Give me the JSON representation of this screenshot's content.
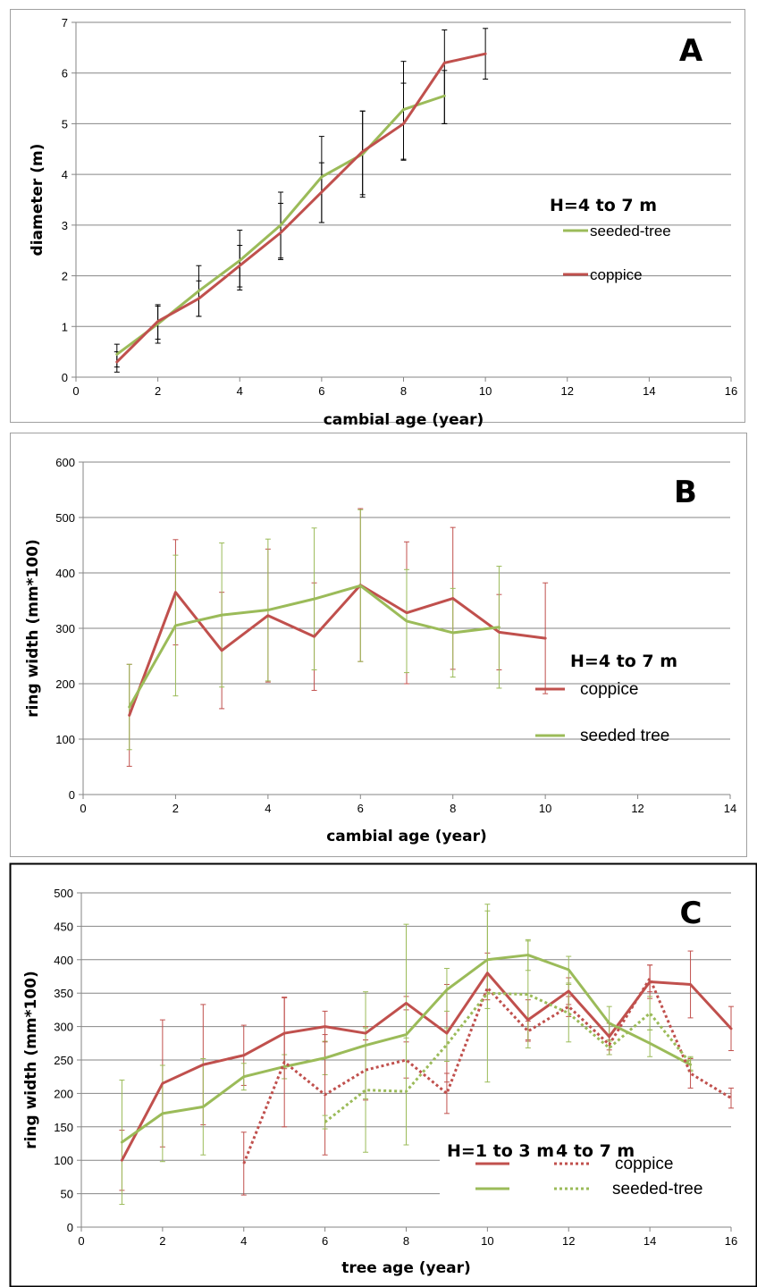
{
  "chart_data": [
    {
      "panel": "A",
      "type": "line",
      "xlabel": "cambial age (year)",
      "ylabel": "diameter (m)",
      "xlim": [
        0,
        16
      ],
      "ylim": [
        0,
        7
      ],
      "xticks": [
        0,
        2,
        4,
        6,
        8,
        10,
        12,
        14,
        16
      ],
      "yticks": [
        0,
        1,
        2,
        3,
        4,
        5,
        6,
        7
      ],
      "grid": "horizontal",
      "legend_title": "H=4 to 7 m",
      "series": [
        {
          "name": "seeded-tree",
          "color": "#9bbb59",
          "style": "solid",
          "x": [
            1,
            2,
            3,
            4,
            5,
            6,
            7,
            8,
            9
          ],
          "y": [
            0.45,
            1.05,
            1.7,
            2.3,
            3.0,
            3.95,
            4.4,
            5.28,
            5.55
          ],
          "err_low": [
            0.25,
            0.38,
            0.5,
            0.58,
            0.68,
            0.9,
            0.85,
            1.0,
            0.55
          ],
          "err_high": [
            0.2,
            0.38,
            0.5,
            0.6,
            0.65,
            0.8,
            0.85,
            0.95,
            0.5
          ]
        },
        {
          "name": "coppice",
          "color": "#c0504d",
          "style": "solid",
          "x": [
            1,
            2,
            3,
            4,
            5,
            6,
            7,
            8,
            9,
            10
          ],
          "y": [
            0.3,
            1.1,
            1.55,
            2.2,
            2.85,
            3.65,
            4.45,
            5.0,
            6.2,
            6.38
          ],
          "err_low": [
            0.2,
            0.35,
            0.35,
            0.42,
            0.5,
            0.6,
            0.85,
            0.7,
            1.2,
            0.5
          ],
          "err_high": [
            0.2,
            0.3,
            0.35,
            0.4,
            0.58,
            0.58,
            0.8,
            0.8,
            0.65,
            0.5
          ]
        }
      ]
    },
    {
      "panel": "B",
      "type": "line",
      "xlabel": "cambial age (year)",
      "ylabel": "ring width (mm*100)",
      "xlim": [
        0,
        14
      ],
      "ylim": [
        0,
        600
      ],
      "xticks": [
        0,
        2,
        4,
        6,
        8,
        10,
        12,
        14
      ],
      "yticks": [
        0,
        100,
        200,
        300,
        400,
        500,
        600
      ],
      "grid": "horizontal",
      "legend_title": "H=4 to 7 m",
      "series": [
        {
          "name": "coppice",
          "color": "#c0504d",
          "style": "solid",
          "x": [
            1,
            2,
            3,
            4,
            5,
            6,
            7,
            8,
            9,
            10
          ],
          "y": [
            143,
            365,
            260,
            323,
            285,
            378,
            328,
            354,
            293,
            282
          ],
          "err_low": [
            92,
            95,
            105,
            120,
            97,
            138,
            128,
            128,
            68,
            100
          ],
          "err_high": [
            92,
            95,
            105,
            120,
            97,
            138,
            128,
            128,
            68,
            100
          ]
        },
        {
          "name": "seeded tree",
          "color": "#9bbb59",
          "style": "solid",
          "x": [
            1,
            2,
            3,
            4,
            5,
            6,
            7,
            8,
            9
          ],
          "y": [
            158,
            305,
            324,
            333,
            353,
            377,
            313,
            292,
            302
          ],
          "err_low": [
            77,
            127,
            130,
            128,
            128,
            137,
            93,
            80,
            110
          ],
          "err_high": [
            77,
            127,
            130,
            128,
            128,
            137,
            93,
            80,
            110
          ]
        }
      ]
    },
    {
      "panel": "C",
      "type": "line",
      "xlabel": "tree age (year)",
      "ylabel": "ring width (mm*100)",
      "xlim": [
        0,
        16
      ],
      "ylim": [
        0,
        500
      ],
      "xticks": [
        0,
        2,
        4,
        6,
        8,
        10,
        12,
        14,
        16
      ],
      "yticks": [
        0,
        50,
        100,
        150,
        200,
        250,
        300,
        350,
        400,
        450,
        500
      ],
      "grid": "horizontal",
      "legend_header": [
        "H=1 to 3 m",
        "4 to 7 m"
      ],
      "legend_labels": [
        "coppice",
        "seeded-tree"
      ],
      "series": [
        {
          "group": "H=1 to 3 m",
          "label": "coppice",
          "color": "#c0504d",
          "style": "solid",
          "x": [
            1,
            2,
            3,
            4,
            5,
            6,
            7,
            8,
            9,
            10,
            11,
            12,
            13,
            14,
            15,
            16
          ],
          "y": [
            100,
            215,
            243,
            257,
            290,
            300,
            290,
            335,
            290,
            380,
            310,
            353,
            285,
            367,
            363,
            297
          ],
          "err_low": [
            45,
            95,
            90,
            45,
            53,
            23,
            10,
            10,
            73,
            30,
            30,
            20,
            20,
            25,
            50,
            33
          ],
          "err_high": [
            45,
            95,
            90,
            45,
            53,
            23,
            10,
            10,
            73,
            30,
            30,
            20,
            20,
            25,
            50,
            33
          ]
        },
        {
          "group": "H=1 to 3 m",
          "label": "seeded-tree",
          "color": "#9bbb59",
          "style": "solid",
          "x": [
            1,
            2,
            3,
            4,
            5,
            6,
            7,
            8,
            9,
            10,
            11,
            12,
            13,
            14,
            15
          ],
          "y": [
            127,
            170,
            180,
            225,
            240,
            253,
            272,
            288,
            355,
            400,
            407,
            385,
            305,
            275,
            243
          ],
          "err_low": [
            93,
            72,
            72,
            20,
            18,
            25,
            80,
            165,
            32,
            73,
            23,
            20,
            25,
            20,
            10
          ],
          "err_high": [
            93,
            72,
            72,
            20,
            18,
            25,
            80,
            165,
            32,
            73,
            23,
            20,
            25,
            20,
            10
          ]
        },
        {
          "group": "4 to 7 m",
          "label": "coppice",
          "color": "#c0504d",
          "style": "dotted",
          "x": [
            4,
            5,
            6,
            7,
            8,
            9,
            10,
            11,
            12,
            13,
            14,
            15,
            16
          ],
          "y": [
            95,
            247,
            198,
            235,
            250,
            200,
            358,
            293,
            330,
            273,
            372,
            230,
            193
          ],
          "err_low": [
            47,
            97,
            90,
            45,
            27,
            30,
            18,
            15,
            15,
            15,
            20,
            22,
            15
          ],
          "err_high": [
            47,
            97,
            90,
            45,
            27,
            30,
            18,
            15,
            15,
            15,
            20,
            22,
            15
          ]
        },
        {
          "group": "4 to 7 m",
          "label": "seeded-tree",
          "color": "#9bbb59",
          "style": "dotted",
          "x": [
            6,
            7,
            8,
            9,
            10,
            11,
            12,
            13,
            14,
            15
          ],
          "y": [
            157,
            205,
            203,
            273,
            350,
            348,
            320,
            268,
            320,
            245
          ],
          "err_low": [
            10,
            93,
            80,
            25,
            133,
            80,
            43,
            10,
            25,
            10
          ],
          "err_high": [
            10,
            93,
            80,
            25,
            133,
            80,
            43,
            10,
            25,
            10
          ]
        }
      ]
    }
  ]
}
